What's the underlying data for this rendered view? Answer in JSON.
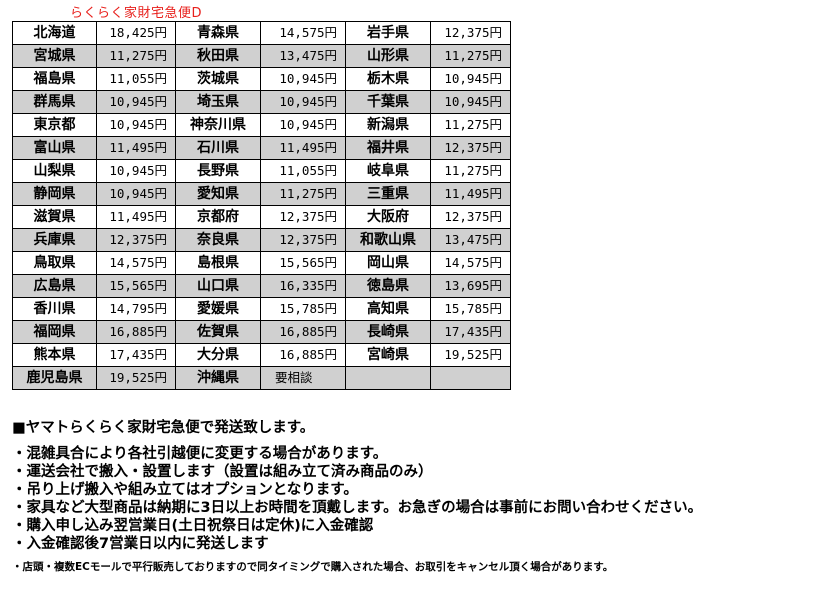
{
  "title": "らくらく家財宅急便D",
  "rows": [
    [
      [
        "北海道",
        "18,425円"
      ],
      [
        "青森県",
        "14,575円"
      ],
      [
        "岩手県",
        "12,375円"
      ]
    ],
    [
      [
        "宮城県",
        "11,275円"
      ],
      [
        "秋田県",
        "13,475円"
      ],
      [
        "山形県",
        "11,275円"
      ]
    ],
    [
      [
        "福島県",
        "11,055円"
      ],
      [
        "茨城県",
        "10,945円"
      ],
      [
        "栃木県",
        "10,945円"
      ]
    ],
    [
      [
        "群馬県",
        "10,945円"
      ],
      [
        "埼玉県",
        "10,945円"
      ],
      [
        "千葉県",
        "10,945円"
      ]
    ],
    [
      [
        "東京都",
        "10,945円"
      ],
      [
        "神奈川県",
        "10,945円"
      ],
      [
        "新潟県",
        "11,275円"
      ]
    ],
    [
      [
        "富山県",
        "11,495円"
      ],
      [
        "石川県",
        "11,495円"
      ],
      [
        "福井県",
        "12,375円"
      ]
    ],
    [
      [
        "山梨県",
        "10,945円"
      ],
      [
        "長野県",
        "11,055円"
      ],
      [
        "岐阜県",
        "11,275円"
      ]
    ],
    [
      [
        "静岡県",
        "10,945円"
      ],
      [
        "愛知県",
        "11,275円"
      ],
      [
        "三重県",
        "11,495円"
      ]
    ],
    [
      [
        "滋賀県",
        "11,495円"
      ],
      [
        "京都府",
        "12,375円"
      ],
      [
        "大阪府",
        "12,375円"
      ]
    ],
    [
      [
        "兵庫県",
        "12,375円"
      ],
      [
        "奈良県",
        "12,375円"
      ],
      [
        "和歌山県",
        "13,475円"
      ]
    ],
    [
      [
        "鳥取県",
        "14,575円"
      ],
      [
        "島根県",
        "15,565円"
      ],
      [
        "岡山県",
        "14,575円"
      ]
    ],
    [
      [
        "広島県",
        "15,565円"
      ],
      [
        "山口県",
        "16,335円"
      ],
      [
        "徳島県",
        "13,695円"
      ]
    ],
    [
      [
        "香川県",
        "14,795円"
      ],
      [
        "愛媛県",
        "15,785円"
      ],
      [
        "高知県",
        "15,785円"
      ]
    ],
    [
      [
        "福岡県",
        "16,885円"
      ],
      [
        "佐賀県",
        "16,885円"
      ],
      [
        "長崎県",
        "17,435円"
      ]
    ],
    [
      [
        "熊本県",
        "17,435円"
      ],
      [
        "大分県",
        "16,885円"
      ],
      [
        "宮崎県",
        "19,525円"
      ]
    ],
    [
      [
        "鹿児島県",
        "19,525円"
      ],
      [
        "沖縄県",
        "要相談"
      ],
      [
        "",
        ""
      ]
    ]
  ],
  "notes": {
    "heading": "■ヤマトらくらく家財宅急便で発送致します。",
    "bullets": [
      "・混雑具合により各社引越便に変更する場合があります。",
      "・運送会社で搬入・設置します（設置は組み立て済み商品のみ）",
      "・吊り上げ搬入や組み立てはオプションとなります。",
      "・家具など大型商品は納期に3日以上お時間を頂戴します。お急ぎの場合は事前にお問い合わせください。",
      "・購入申し込み翌営業日(土日祝祭日は定休)に入金確認",
      "・入金確認後7営業日以内に発送します"
    ],
    "small": "・店頭・複数ECモールで平行販売しておりますので同タイミングで購入された場合、お取引をキャンセル頂く場合があります。"
  }
}
